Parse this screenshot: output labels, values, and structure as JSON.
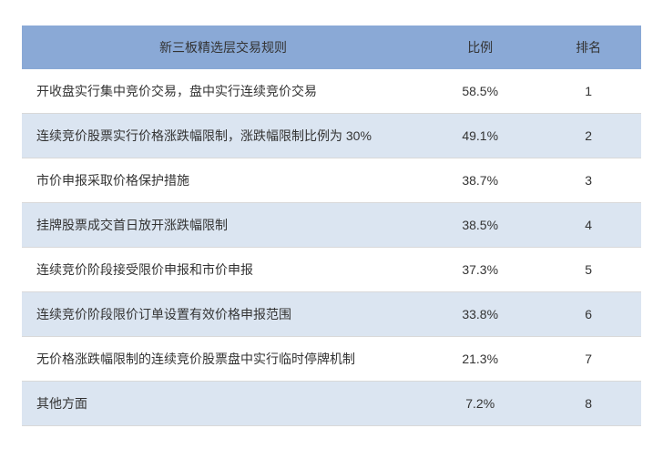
{
  "table": {
    "type": "table",
    "header": {
      "col0": "新三板精选层交易规则",
      "col1": "比例",
      "col2": "排名",
      "background_color": "#8aa9d6",
      "text_color": "#333333",
      "fontsize": 14
    },
    "columns_align": [
      "left",
      "center",
      "center"
    ],
    "row_colors": {
      "odd": "#ffffff",
      "even": "#dbe5f1"
    },
    "border_color": "#d9d9d9",
    "cell_fontsize": 14,
    "cell_text_color": "#333333",
    "rows": [
      {
        "rule": "开收盘实行集中竞价交易，盘中实行连续竞价交易",
        "pct": "58.5%",
        "rank": "1"
      },
      {
        "rule": "连续竞价股票实行价格涨跌幅限制，涨跌幅限制比例为 30%",
        "pct": "49.1%",
        "rank": "2"
      },
      {
        "rule": "市价申报采取价格保护措施",
        "pct": "38.7%",
        "rank": "3"
      },
      {
        "rule": "挂牌股票成交首日放开涨跌幅限制",
        "pct": "38.5%",
        "rank": "4"
      },
      {
        "rule": "连续竞价阶段接受限价申报和市价申报",
        "pct": "37.3%",
        "rank": "5"
      },
      {
        "rule": "连续竞价阶段限价订单设置有效价格申报范围",
        "pct": "33.8%",
        "rank": "6"
      },
      {
        "rule": "无价格涨跌幅限制的连续竞价股票盘中实行临时停牌机制",
        "pct": "21.3%",
        "rank": "7"
      },
      {
        "rule": "其他方面",
        "pct": "7.2%",
        "rank": "8"
      }
    ]
  }
}
